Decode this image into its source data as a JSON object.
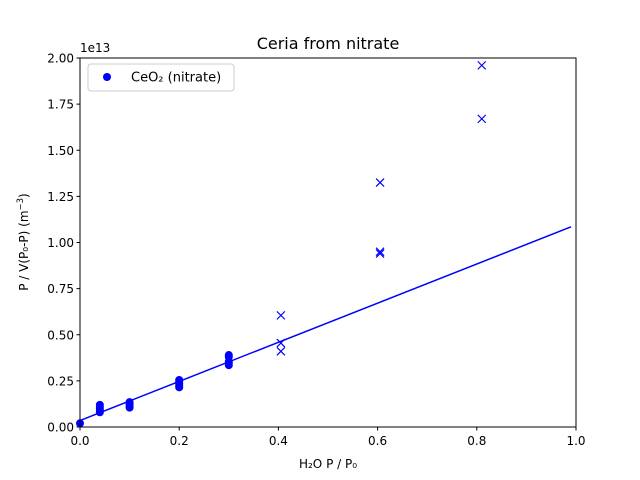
{
  "chart_data": {
    "type": "scatter",
    "title": "Ceria from nitrate",
    "xlabel": "H₂O P / P₀",
    "ylabel_main": "P / V(P₀-P) (m",
    "ylabel_exp": "−3",
    "ylabel_close": ")",
    "y_offset_label": "1e13",
    "xlim": [
      0.0,
      1.0
    ],
    "ylim": [
      0.0,
      2.0
    ],
    "y_scale_note": "values in units of 1e13",
    "xticks": [
      0.0,
      0.2,
      0.4,
      0.6,
      0.8,
      1.0
    ],
    "xtick_labels": [
      "0.0",
      "0.2",
      "0.4",
      "0.6",
      "0.8",
      "1.0"
    ],
    "yticks": [
      0.0,
      0.25,
      0.5,
      0.75,
      1.0,
      1.25,
      1.5,
      1.75,
      2.0
    ],
    "ytick_labels": [
      "0.00",
      "0.25",
      "0.50",
      "0.75",
      "1.00",
      "1.25",
      "1.50",
      "1.75",
      "2.00"
    ],
    "grid": false,
    "legend_placement": "top-left",
    "color": "#0000ff",
    "series": [
      {
        "name": "CeO₂ (nitrate)",
        "marker": "circle",
        "points": [
          [
            0.0,
            0.02
          ],
          [
            0.04,
            0.08
          ],
          [
            0.04,
            0.09
          ],
          [
            0.04,
            0.1
          ],
          [
            0.04,
            0.11
          ],
          [
            0.04,
            0.12
          ],
          [
            0.1,
            0.105
          ],
          [
            0.1,
            0.115
          ],
          [
            0.1,
            0.125
          ],
          [
            0.1,
            0.135
          ],
          [
            0.2,
            0.215
          ],
          [
            0.2,
            0.225
          ],
          [
            0.2,
            0.235
          ],
          [
            0.2,
            0.245
          ],
          [
            0.2,
            0.255
          ],
          [
            0.3,
            0.335
          ],
          [
            0.3,
            0.345
          ],
          [
            0.3,
            0.355
          ],
          [
            0.3,
            0.38
          ],
          [
            0.3,
            0.39
          ]
        ]
      },
      {
        "marker": "x",
        "points": [
          [
            0.405,
            0.41
          ],
          [
            0.405,
            0.455
          ],
          [
            0.405,
            0.605
          ],
          [
            0.605,
            0.94
          ],
          [
            0.605,
            0.95
          ],
          [
            0.605,
            1.325
          ],
          [
            0.81,
            1.67
          ],
          [
            0.81,
            1.96
          ]
        ]
      },
      {
        "marker": "line",
        "points": [
          [
            0.0,
            0.035
          ],
          [
            0.99,
            1.085
          ]
        ]
      }
    ]
  }
}
